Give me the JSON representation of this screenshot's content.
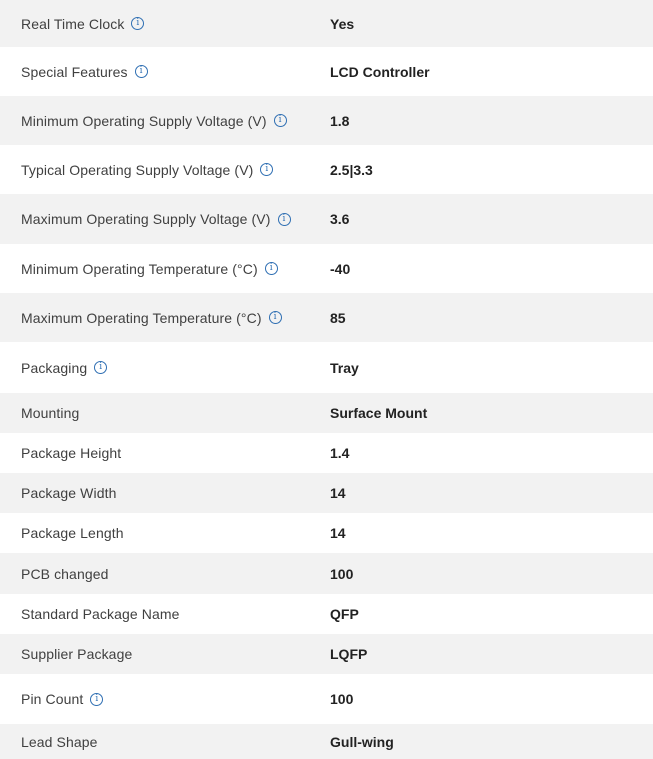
{
  "info_icon_glyph": "i",
  "colors": {
    "row_shaded": "#f2f2f2",
    "row_plain": "#ffffff",
    "info_icon": "#2f6fb3",
    "label_text": "#404040",
    "value_text": "#222222"
  },
  "specs": [
    {
      "label": "Real Time Clock",
      "value": "Yes",
      "info": true
    },
    {
      "label": "Special Features",
      "value": "LCD Controller",
      "info": true
    },
    {
      "label": "Minimum Operating Supply Voltage (V)",
      "value": "1.8",
      "info": true
    },
    {
      "label": "Typical Operating Supply Voltage (V)",
      "value": "2.5|3.3",
      "info": true
    },
    {
      "label": "Maximum Operating Supply Voltage (V)",
      "value": "3.6",
      "info": true
    },
    {
      "label": "Minimum Operating Temperature (°C)",
      "value": "-40",
      "info": true
    },
    {
      "label": "Maximum Operating Temperature (°C)",
      "value": "85",
      "info": true
    },
    {
      "label": "Packaging",
      "value": "Tray",
      "info": true
    },
    {
      "label": "Mounting",
      "value": "Surface Mount",
      "info": false
    },
    {
      "label": "Package Height",
      "value": "1.4",
      "info": false
    },
    {
      "label": "Package Width",
      "value": "14",
      "info": false
    },
    {
      "label": "Package Length",
      "value": "14",
      "info": false
    },
    {
      "label": "PCB changed",
      "value": "100",
      "info": false
    },
    {
      "label": "Standard Package Name",
      "value": "QFP",
      "info": false
    },
    {
      "label": "Supplier Package",
      "value": "LQFP",
      "info": false
    },
    {
      "label": "Pin Count",
      "value": "100",
      "info": true
    },
    {
      "label": "Lead Shape",
      "value": "Gull-wing",
      "info": false
    }
  ]
}
